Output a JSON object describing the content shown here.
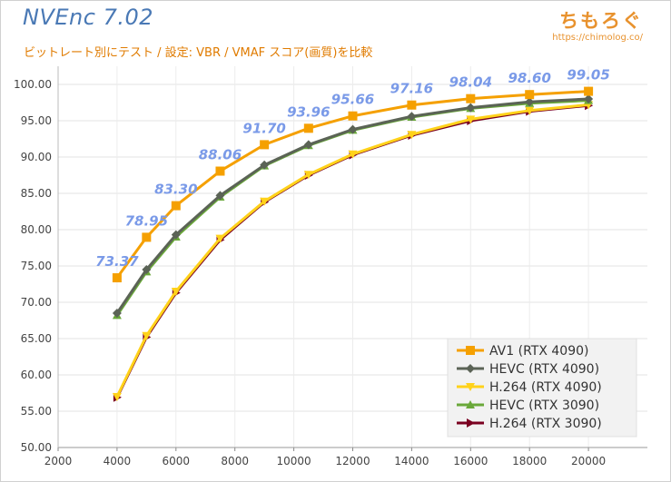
{
  "header": {
    "title": "NVEnc 7.02",
    "subtitle": "ビットレート別にテスト / 設定: VBR / VMAF スコア(画質)を比較",
    "brand": "ちもろぐ",
    "brand_url": "https://chimolog.co/"
  },
  "chart_data": {
    "type": "line",
    "title": "NVEnc 7.02",
    "subtitle": "ビットレート別にテスト / 設定: VBR / VMAF スコア(画質)を比較",
    "xlabel": "",
    "ylabel": "",
    "xlim": [
      2000,
      22000
    ],
    "ylim": [
      50,
      102.5
    ],
    "xticks": [
      2000,
      4000,
      6000,
      8000,
      10000,
      12000,
      14000,
      16000,
      18000,
      20000
    ],
    "yticks": [
      50,
      55,
      60,
      65,
      70,
      75,
      80,
      85,
      90,
      95,
      100
    ],
    "grid": true,
    "legend_position": "bottom-right",
    "x": [
      4000,
      5000,
      6000,
      7500,
      9000,
      10500,
      12000,
      14000,
      16000,
      18000,
      20000
    ],
    "series": [
      {
        "name": "AV1 (RTX 4090)",
        "color": "#f5a000",
        "marker": "square",
        "values": [
          73.37,
          78.95,
          83.3,
          88.06,
          91.7,
          93.96,
          95.66,
          97.16,
          98.04,
          98.6,
          99.05
        ],
        "data_labels": [
          "73.37",
          "78.95",
          "83.30",
          "88.06",
          "91.70",
          "93.96",
          "95.66",
          "97.16",
          "98.04",
          "98.60",
          "99.05"
        ]
      },
      {
        "name": "HEVC (RTX 4090)",
        "color": "#5b6356",
        "marker": "diamond",
        "values": [
          68.5,
          74.5,
          79.3,
          84.7,
          88.9,
          91.7,
          93.8,
          95.6,
          96.8,
          97.6,
          98.0
        ]
      },
      {
        "name": "H.264 (RTX 4090)",
        "color": "#ffd21a",
        "marker": "triangle-down",
        "values": [
          57.0,
          65.4,
          71.5,
          78.8,
          83.9,
          87.6,
          90.4,
          93.1,
          95.2,
          96.4,
          97.2
        ]
      },
      {
        "name": "HEVC (RTX 3090)",
        "color": "#6aa83a",
        "marker": "triangle-up",
        "values": [
          68.2,
          74.2,
          79.0,
          84.5,
          88.8,
          91.6,
          93.7,
          95.5,
          96.7,
          97.4,
          97.8
        ]
      },
      {
        "name": "H.264 (RTX 3090)",
        "color": "#7a0020",
        "marker": "triangle-right",
        "values": [
          56.9,
          65.2,
          71.3,
          78.6,
          83.8,
          87.5,
          90.3,
          93.0,
          95.0,
          96.3,
          97.1
        ]
      }
    ]
  }
}
